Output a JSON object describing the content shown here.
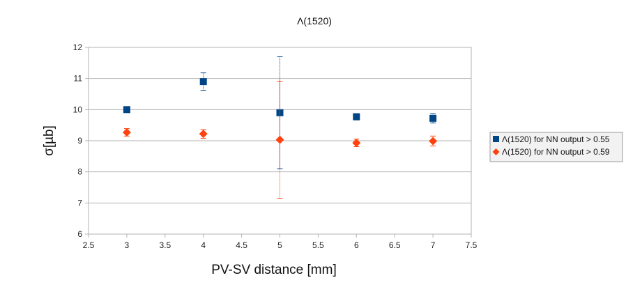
{
  "chart_data": {
    "type": "scatter",
    "title": "Λ(1520)",
    "xlabel": "PV-SV distance [mm]",
    "ylabel": "σ[µb]",
    "xlim": [
      2.5,
      7.5
    ],
    "ylim": [
      6,
      12
    ],
    "x_ticks": [
      "2.5",
      "3",
      "3.5",
      "4",
      "4.5",
      "5",
      "5.5",
      "6",
      "6.5",
      "7",
      "7.5"
    ],
    "y_ticks": [
      "6",
      "7",
      "8",
      "9",
      "10",
      "11",
      "12"
    ],
    "grid": "horizontal",
    "legend_position": "right",
    "series": [
      {
        "name": "Λ(1520) for NN output > 0.55",
        "color": "#004586",
        "marker": "square",
        "points": [
          {
            "x": 3,
            "y": 10.0,
            "err": 0.06
          },
          {
            "x": 4,
            "y": 10.9,
            "err": 0.28
          },
          {
            "x": 5,
            "y": 9.9,
            "err": 1.8
          },
          {
            "x": 6,
            "y": 9.77,
            "err": 0.1
          },
          {
            "x": 7,
            "y": 9.72,
            "err": 0.15
          }
        ]
      },
      {
        "name": "Λ(1520) for NN output > 0.59",
        "color": "#ff420e",
        "marker": "diamond",
        "points": [
          {
            "x": 3,
            "y": 9.27,
            "err": 0.12
          },
          {
            "x": 4,
            "y": 9.22,
            "err": 0.14
          },
          {
            "x": 5,
            "y": 9.03,
            "err": 1.88
          },
          {
            "x": 6,
            "y": 8.93,
            "err": 0.12
          },
          {
            "x": 7,
            "y": 8.99,
            "err": 0.16
          }
        ]
      }
    ]
  }
}
